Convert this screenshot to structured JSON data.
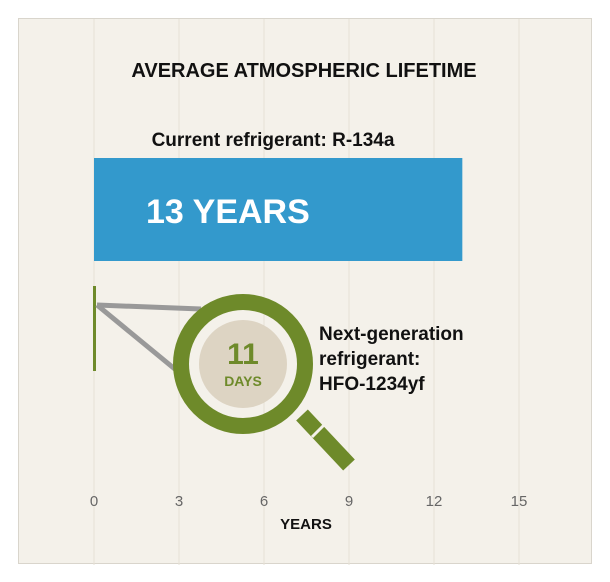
{
  "chart_data": {
    "type": "bar",
    "orientation": "horizontal",
    "title": "AVERAGE ATMOSPHERIC LIFETIME",
    "xlabel": "YEARS",
    "xlim": [
      0,
      15
    ],
    "x_ticks": [
      0,
      3,
      6,
      9,
      12,
      15
    ],
    "grid": "vertical",
    "series": [
      {
        "name": "Current refrigerant: R-134a",
        "value": 13,
        "value_label": "13 YEARS",
        "color": "#3399cc"
      },
      {
        "name_lines": [
          "Next-generation",
          "refrigerant:",
          "HFO-1234yf"
        ],
        "value": 0.03,
        "value_label_number": "11",
        "value_label_unit": "DAYS",
        "color": "#6e8a2a"
      }
    ],
    "colors": {
      "background": "#f4f1ea",
      "grid": "#e6e1d6",
      "magnifier": "#6e8a2a",
      "magnifier_fill": "#ddd4c3",
      "pointer_lines": "#999999"
    }
  }
}
